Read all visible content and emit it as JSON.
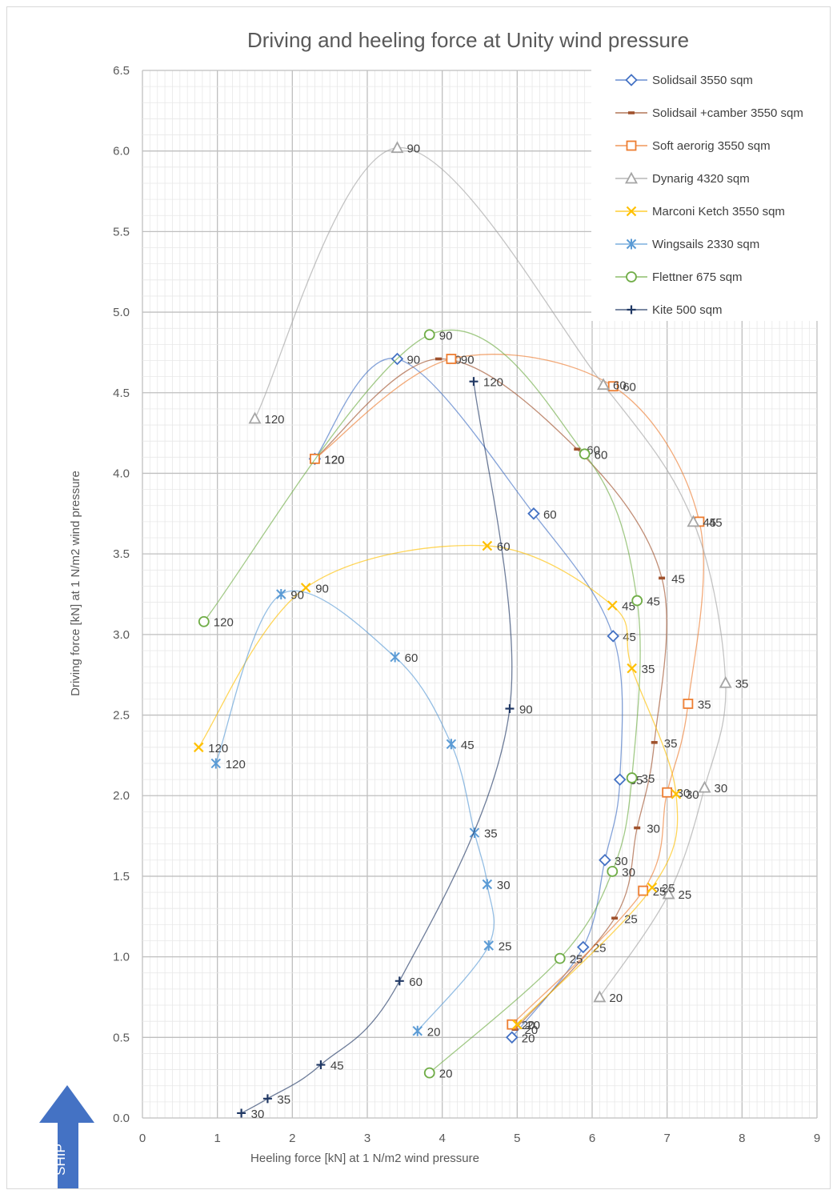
{
  "chart_data": {
    "type": "scatter",
    "title": "Driving and heeling force at Unity wind pressure",
    "xlabel": "Heeling force [kN] at 1 N/m2 wind pressure",
    "ylabel": "Driving force [kN] at 1 N/m2 wind pressure",
    "xlim": [
      0,
      9
    ],
    "ylim": [
      0,
      6.5
    ],
    "xticks": [
      "0",
      "1",
      "2",
      "3",
      "4",
      "5",
      "6",
      "7",
      "8",
      "9"
    ],
    "yticks": [
      "0.0",
      "0.5",
      "1.0",
      "1.5",
      "2.0",
      "2.5",
      "3.0",
      "3.5",
      "4.0",
      "4.5",
      "5.0",
      "5.5",
      "6.0",
      "6.5"
    ],
    "grid": "major and minor",
    "legend": "top-right",
    "series": [
      {
        "name": "Solidsail 3550 sqm",
        "color": "#4472c4",
        "marker": "diamond",
        "points": [
          {
            "x": 4.93,
            "y": 0.5,
            "label": "20"
          },
          {
            "x": 5.88,
            "y": 1.06,
            "label": "25"
          },
          {
            "x": 6.17,
            "y": 1.6,
            "label": "30"
          },
          {
            "x": 6.37,
            "y": 2.1,
            "label": "35"
          },
          {
            "x": 6.28,
            "y": 2.99,
            "label": "45"
          },
          {
            "x": 5.22,
            "y": 3.75,
            "label": "60"
          },
          {
            "x": 3.4,
            "y": 4.71,
            "label": "90"
          },
          {
            "x": 2.3,
            "y": 4.09,
            "label": "120"
          }
        ]
      },
      {
        "name": "Solidsail +camber 3550 sqm",
        "color": "#a0522d",
        "marker": "dash",
        "points": [
          {
            "x": 4.97,
            "y": 0.55,
            "label": "20"
          },
          {
            "x": 6.3,
            "y": 1.24,
            "label": "25"
          },
          {
            "x": 6.6,
            "y": 1.8,
            "label": "30"
          },
          {
            "x": 6.83,
            "y": 2.33,
            "label": "35"
          },
          {
            "x": 6.93,
            "y": 3.35,
            "label": "45"
          },
          {
            "x": 5.8,
            "y": 4.15,
            "label": "60"
          },
          {
            "x": 3.95,
            "y": 4.71,
            "label": "90"
          },
          {
            "x": 2.3,
            "y": 4.09,
            "label": "120"
          }
        ]
      },
      {
        "name": "Soft aerorig 3550 sqm",
        "color": "#ed7d31",
        "marker": "square",
        "points": [
          {
            "x": 4.93,
            "y": 0.58,
            "label": "20"
          },
          {
            "x": 6.68,
            "y": 1.41,
            "label": "25"
          },
          {
            "x": 7.0,
            "y": 2.02,
            "label": "30"
          },
          {
            "x": 7.28,
            "y": 2.57,
            "label": "35"
          },
          {
            "x": 7.43,
            "y": 3.7,
            "label": "45"
          },
          {
            "x": 6.28,
            "y": 4.54,
            "label": "60"
          },
          {
            "x": 4.12,
            "y": 4.71,
            "label": "90"
          },
          {
            "x": 2.3,
            "y": 4.09,
            "label": "120"
          }
        ]
      },
      {
        "name": "Dynarig 4320 sqm",
        "color": "#a5a5a5",
        "marker": "triangle",
        "points": [
          {
            "x": 6.1,
            "y": 0.75,
            "label": "20"
          },
          {
            "x": 7.02,
            "y": 1.39,
            "label": "25"
          },
          {
            "x": 7.5,
            "y": 2.05,
            "label": "30"
          },
          {
            "x": 7.78,
            "y": 2.7,
            "label": "35"
          },
          {
            "x": 7.35,
            "y": 3.7,
            "label": "45"
          },
          {
            "x": 6.15,
            "y": 4.55,
            "label": "60"
          },
          {
            "x": 3.4,
            "y": 6.02,
            "label": "90"
          },
          {
            "x": 1.5,
            "y": 4.34,
            "label": "120"
          }
        ]
      },
      {
        "name": "Marconi Ketch 3550 sqm",
        "color": "#ffc000",
        "marker": "x",
        "points": [
          {
            "x": 5.0,
            "y": 0.58,
            "label": "20"
          },
          {
            "x": 6.8,
            "y": 1.43,
            "label": "25"
          },
          {
            "x": 7.12,
            "y": 2.01,
            "label": "30"
          },
          {
            "x": 6.53,
            "y": 2.79,
            "label": "35"
          },
          {
            "x": 6.27,
            "y": 3.18,
            "label": "45"
          },
          {
            "x": 4.6,
            "y": 3.55,
            "label": "60"
          },
          {
            "x": 2.18,
            "y": 3.29,
            "label": "90"
          },
          {
            "x": 0.75,
            "y": 2.3,
            "label": "120"
          }
        ]
      },
      {
        "name": "Wingsails 2330 sqm",
        "color": "#5b9bd5",
        "marker": "star",
        "points": [
          {
            "x": 3.67,
            "y": 0.54,
            "label": "20"
          },
          {
            "x": 4.62,
            "y": 1.07,
            "label": "25"
          },
          {
            "x": 4.6,
            "y": 1.45,
            "label": "30"
          },
          {
            "x": 4.43,
            "y": 1.77,
            "label": "35"
          },
          {
            "x": 4.12,
            "y": 2.32,
            "label": "45"
          },
          {
            "x": 3.37,
            "y": 2.86,
            "label": "60"
          },
          {
            "x": 1.85,
            "y": 3.25,
            "label": "90"
          },
          {
            "x": 0.98,
            "y": 2.2,
            "label": "120"
          }
        ]
      },
      {
        "name": "Flettner 675 sqm",
        "color": "#70ad47",
        "marker": "circle",
        "points": [
          {
            "x": 3.83,
            "y": 0.28,
            "label": "20"
          },
          {
            "x": 5.57,
            "y": 0.99,
            "label": "25"
          },
          {
            "x": 6.27,
            "y": 1.53,
            "label": "30"
          },
          {
            "x": 6.53,
            "y": 2.11,
            "label": "35"
          },
          {
            "x": 6.6,
            "y": 3.21,
            "label": "45"
          },
          {
            "x": 5.9,
            "y": 4.12,
            "label": "60"
          },
          {
            "x": 3.83,
            "y": 4.86,
            "label": "90"
          },
          {
            "x": 0.82,
            "y": 3.08,
            "label": "120"
          }
        ]
      },
      {
        "name": "Kite 500 sqm",
        "color": "#203864",
        "marker": "plus",
        "points": [
          {
            "x": 1.32,
            "y": 0.03,
            "label": "30"
          },
          {
            "x": 1.67,
            "y": 0.12,
            "label": "35"
          },
          {
            "x": 2.38,
            "y": 0.33,
            "label": "45"
          },
          {
            "x": 3.43,
            "y": 0.85,
            "label": "60"
          },
          {
            "x": 4.9,
            "y": 2.54,
            "label": "90"
          },
          {
            "x": 4.42,
            "y": 4.57,
            "label": "120"
          }
        ]
      }
    ]
  },
  "ship_arrow": {
    "label": "SHIP",
    "color": "#4472c4"
  }
}
